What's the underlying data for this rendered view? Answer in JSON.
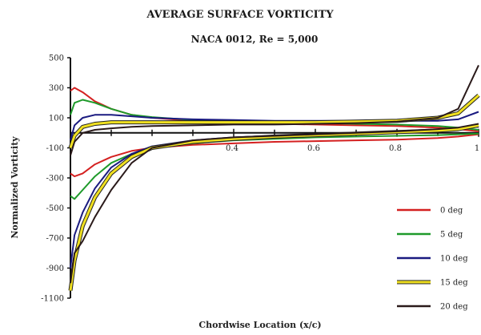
{
  "chart_data": {
    "type": "line",
    "title": "AVERAGE SURFACE VORTICITY",
    "subtitle": "NACA 0012, Re = 5,000",
    "xlabel": "Chordwise Location (x/c)",
    "ylabel": "Normalized Vorticity",
    "xlim": [
      0,
      1
    ],
    "ylim": [
      -1100,
      500
    ],
    "y_ticks": [
      "500",
      "300",
      "100",
      "-100",
      "-300",
      "-500",
      "-700",
      "-900",
      "-1100"
    ],
    "x_ticks": [
      "0.4",
      "0.6",
      "0.8",
      "1"
    ],
    "x_tick_values": [
      0.4,
      0.6,
      0.8,
      1
    ],
    "legend_position": "bottom-right",
    "series": [
      {
        "name": "0 deg",
        "color": "#d42020",
        "upper": [
          [
            0,
            280
          ],
          [
            0.01,
            300
          ],
          [
            0.03,
            270
          ],
          [
            0.06,
            210
          ],
          [
            0.1,
            160
          ],
          [
            0.15,
            120
          ],
          [
            0.2,
            100
          ],
          [
            0.3,
            80
          ],
          [
            0.4,
            70
          ],
          [
            0.5,
            60
          ],
          [
            0.6,
            55
          ],
          [
            0.7,
            50
          ],
          [
            0.8,
            45
          ],
          [
            0.9,
            35
          ],
          [
            0.95,
            25
          ],
          [
            1,
            10
          ]
        ],
        "lower": [
          [
            0,
            -270
          ],
          [
            0.01,
            -290
          ],
          [
            0.03,
            -270
          ],
          [
            0.06,
            -210
          ],
          [
            0.1,
            -160
          ],
          [
            0.15,
            -120
          ],
          [
            0.2,
            -100
          ],
          [
            0.3,
            -80
          ],
          [
            0.4,
            -70
          ],
          [
            0.5,
            -60
          ],
          [
            0.6,
            -55
          ],
          [
            0.7,
            -50
          ],
          [
            0.8,
            -45
          ],
          [
            0.9,
            -35
          ],
          [
            0.95,
            -25
          ],
          [
            1,
            -10
          ]
        ]
      },
      {
        "name": "5 deg",
        "color": "#1e9a2a",
        "upper": [
          [
            0,
            120
          ],
          [
            0.01,
            200
          ],
          [
            0.03,
            220
          ],
          [
            0.06,
            200
          ],
          [
            0.1,
            160
          ],
          [
            0.15,
            120
          ],
          [
            0.2,
            105
          ],
          [
            0.3,
            85
          ],
          [
            0.4,
            75
          ],
          [
            0.5,
            70
          ],
          [
            0.6,
            65
          ],
          [
            0.7,
            60
          ],
          [
            0.8,
            55
          ],
          [
            0.9,
            45
          ],
          [
            0.95,
            35
          ],
          [
            1,
            20
          ]
        ],
        "lower": [
          [
            0,
            -420
          ],
          [
            0.01,
            -440
          ],
          [
            0.03,
            -380
          ],
          [
            0.06,
            -290
          ],
          [
            0.1,
            -200
          ],
          [
            0.15,
            -140
          ],
          [
            0.2,
            -100
          ],
          [
            0.3,
            -70
          ],
          [
            0.4,
            -50
          ],
          [
            0.5,
            -40
          ],
          [
            0.6,
            -30
          ],
          [
            0.7,
            -25
          ],
          [
            0.8,
            -20
          ],
          [
            0.9,
            -15
          ],
          [
            0.95,
            -10
          ],
          [
            1,
            -5
          ]
        ]
      },
      {
        "name": "10 deg",
        "color": "#1a1a80",
        "upper": [
          [
            0,
            -50
          ],
          [
            0.01,
            50
          ],
          [
            0.03,
            100
          ],
          [
            0.06,
            120
          ],
          [
            0.1,
            120
          ],
          [
            0.15,
            110
          ],
          [
            0.2,
            100
          ],
          [
            0.3,
            90
          ],
          [
            0.4,
            85
          ],
          [
            0.5,
            80
          ],
          [
            0.6,
            80
          ],
          [
            0.7,
            80
          ],
          [
            0.8,
            80
          ],
          [
            0.9,
            80
          ],
          [
            0.95,
            90
          ],
          [
            1,
            140
          ]
        ],
        "lower": [
          [
            0,
            -900
          ],
          [
            0.01,
            -680
          ],
          [
            0.03,
            -530
          ],
          [
            0.06,
            -370
          ],
          [
            0.1,
            -230
          ],
          [
            0.15,
            -140
          ],
          [
            0.2,
            -90
          ],
          [
            0.3,
            -50
          ],
          [
            0.4,
            -30
          ],
          [
            0.5,
            -20
          ],
          [
            0.6,
            -10
          ],
          [
            0.7,
            0
          ],
          [
            0.8,
            10
          ],
          [
            0.9,
            20
          ],
          [
            0.95,
            30
          ],
          [
            1,
            40
          ]
        ]
      },
      {
        "name": "15 deg",
        "color": "#f0e020",
        "upper": [
          [
            0,
            -100
          ],
          [
            0.01,
            -20
          ],
          [
            0.03,
            40
          ],
          [
            0.06,
            60
          ],
          [
            0.1,
            70
          ],
          [
            0.15,
            70
          ],
          [
            0.2,
            70
          ],
          [
            0.3,
            70
          ],
          [
            0.4,
            70
          ],
          [
            0.5,
            70
          ],
          [
            0.6,
            70
          ],
          [
            0.7,
            75
          ],
          [
            0.8,
            80
          ],
          [
            0.9,
            100
          ],
          [
            0.95,
            130
          ],
          [
            1,
            250
          ]
        ],
        "lower": [
          [
            0,
            -1050
          ],
          [
            0.01,
            -850
          ],
          [
            0.03,
            -620
          ],
          [
            0.06,
            -430
          ],
          [
            0.1,
            -270
          ],
          [
            0.15,
            -160
          ],
          [
            0.2,
            -100
          ],
          [
            0.3,
            -60
          ],
          [
            0.4,
            -40
          ],
          [
            0.5,
            -25
          ],
          [
            0.6,
            -15
          ],
          [
            0.7,
            -5
          ],
          [
            0.8,
            5
          ],
          [
            0.9,
            15
          ],
          [
            0.95,
            25
          ],
          [
            1,
            50
          ]
        ]
      },
      {
        "name": "20 deg",
        "color": "#2a1a1a",
        "upper": [
          [
            0,
            -150
          ],
          [
            0.01,
            -60
          ],
          [
            0.03,
            0
          ],
          [
            0.06,
            20
          ],
          [
            0.1,
            30
          ],
          [
            0.15,
            40
          ],
          [
            0.2,
            45
          ],
          [
            0.3,
            50
          ],
          [
            0.4,
            55
          ],
          [
            0.5,
            55
          ],
          [
            0.6,
            60
          ],
          [
            0.7,
            65
          ],
          [
            0.8,
            75
          ],
          [
            0.9,
            100
          ],
          [
            0.95,
            160
          ],
          [
            1,
            450
          ]
        ],
        "lower": [
          [
            0,
            -1000
          ],
          [
            0.01,
            -800
          ],
          [
            0.03,
            -720
          ],
          [
            0.06,
            -560
          ],
          [
            0.1,
            -380
          ],
          [
            0.15,
            -200
          ],
          [
            0.2,
            -100
          ],
          [
            0.3,
            -50
          ],
          [
            0.4,
            -30
          ],
          [
            0.5,
            -20
          ],
          [
            0.6,
            -10
          ],
          [
            0.7,
            0
          ],
          [
            0.8,
            10
          ],
          [
            0.9,
            25
          ],
          [
            0.95,
            35
          ],
          [
            1,
            60
          ]
        ]
      }
    ]
  }
}
